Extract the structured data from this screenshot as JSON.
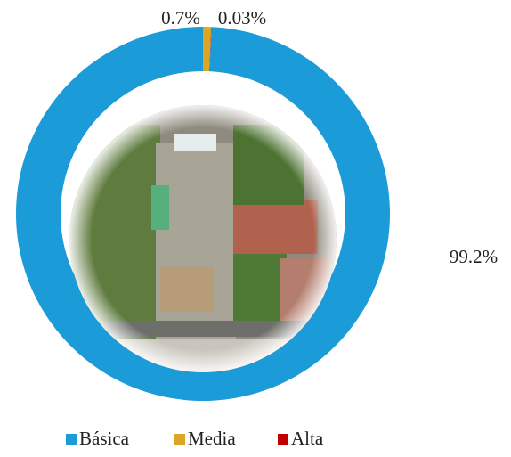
{
  "chart_data": {
    "type": "donut",
    "series": [
      {
        "name": "Básica",
        "color": "#1b9bd7",
        "values": [
          99.2
        ],
        "value_labels": [
          "99.2%"
        ]
      },
      {
        "name": "Media",
        "color": "#dba626",
        "values": [
          0.7
        ],
        "value_labels": [
          "0.7%"
        ]
      },
      {
        "name": "Alta",
        "color": "#c00000",
        "values": [
          0.03
        ],
        "value_labels": [
          "0.03%"
        ]
      }
    ]
  }
}
